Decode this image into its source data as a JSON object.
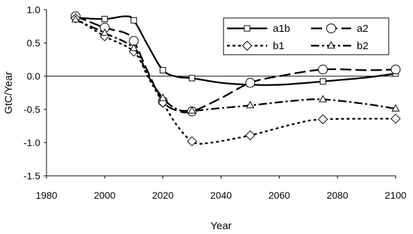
{
  "chart_data": {
    "type": "line",
    "title": "",
    "xlabel": "Year",
    "ylabel": "GtC/Year",
    "xlim": [
      1980,
      2100
    ],
    "ylim": [
      -1.5,
      1.0
    ],
    "x_ticks": [
      "1980",
      "2000",
      "2020",
      "2040",
      "2060",
      "2080",
      "2100"
    ],
    "y_ticks": [
      "1.0",
      "0.5",
      "0.0",
      "-0.5",
      "-1.0",
      "-1.5"
    ],
    "grid": false,
    "legend_position": "top-right",
    "series": [
      {
        "name": "a1b",
        "line_style": "solid",
        "marker": "square",
        "markers": [
          [
            1990,
            0.88
          ],
          [
            2000,
            0.86
          ],
          [
            2010,
            0.84
          ],
          [
            2020,
            0.09
          ],
          [
            2030,
            -0.03
          ],
          [
            2050,
            -0.12
          ],
          [
            2075,
            -0.08
          ],
          [
            2100,
            0.04
          ]
        ],
        "curve": [
          [
            1990,
            0.88
          ],
          [
            2000,
            0.86
          ],
          [
            2007,
            0.9
          ],
          [
            2010,
            0.84
          ],
          [
            2015,
            0.45
          ],
          [
            2020,
            0.09
          ],
          [
            2025,
            -0.01
          ],
          [
            2030,
            -0.03
          ],
          [
            2040,
            -0.1
          ],
          [
            2050,
            -0.13
          ],
          [
            2060,
            -0.13
          ],
          [
            2075,
            -0.08
          ],
          [
            2090,
            -0.02
          ],
          [
            2100,
            0.04
          ]
        ]
      },
      {
        "name": "a2",
        "line_style": "long-dash",
        "marker": "circle",
        "markers": [
          [
            1990,
            0.9
          ],
          [
            2000,
            0.73
          ],
          [
            2010,
            0.53
          ],
          [
            2020,
            -0.38
          ],
          [
            2030,
            -0.53
          ],
          [
            2050,
            -0.1
          ],
          [
            2075,
            0.1
          ],
          [
            2100,
            0.1
          ]
        ],
        "curve": [
          [
            1990,
            0.9
          ],
          [
            2000,
            0.73
          ],
          [
            2007,
            0.65
          ],
          [
            2010,
            0.53
          ],
          [
            2015,
            0.05
          ],
          [
            2020,
            -0.38
          ],
          [
            2025,
            -0.52
          ],
          [
            2030,
            -0.53
          ],
          [
            2040,
            -0.33
          ],
          [
            2050,
            -0.1
          ],
          [
            2060,
            0.0
          ],
          [
            2075,
            0.1
          ],
          [
            2090,
            0.09
          ],
          [
            2100,
            0.1
          ]
        ]
      },
      {
        "name": "b1",
        "line_style": "short-dash",
        "marker": "diamond",
        "markers": [
          [
            1990,
            0.87
          ],
          [
            2000,
            0.6
          ],
          [
            2010,
            0.37
          ],
          [
            2020,
            -0.4
          ],
          [
            2030,
            -0.98
          ],
          [
            2050,
            -0.89
          ],
          [
            2075,
            -0.65
          ],
          [
            2100,
            -0.64
          ]
        ],
        "curve": [
          [
            1990,
            0.87
          ],
          [
            2000,
            0.6
          ],
          [
            2010,
            0.37
          ],
          [
            2015,
            -0.02
          ],
          [
            2020,
            -0.4
          ],
          [
            2025,
            -0.75
          ],
          [
            2030,
            -0.98
          ],
          [
            2035,
            -1.01
          ],
          [
            2050,
            -0.89
          ],
          [
            2065,
            -0.72
          ],
          [
            2075,
            -0.65
          ],
          [
            2100,
            -0.64
          ]
        ]
      },
      {
        "name": "b2",
        "line_style": "dash-dot",
        "marker": "triangle",
        "markers": [
          [
            1990,
            0.85
          ],
          [
            2000,
            0.65
          ],
          [
            2010,
            0.42
          ],
          [
            2020,
            -0.33
          ],
          [
            2030,
            -0.52
          ],
          [
            2050,
            -0.44
          ],
          [
            2075,
            -0.35
          ],
          [
            2100,
            -0.49
          ]
        ],
        "curve": [
          [
            1990,
            0.85
          ],
          [
            2000,
            0.65
          ],
          [
            2010,
            0.42
          ],
          [
            2015,
            0.0
          ],
          [
            2020,
            -0.33
          ],
          [
            2025,
            -0.5
          ],
          [
            2030,
            -0.52
          ],
          [
            2040,
            -0.48
          ],
          [
            2050,
            -0.44
          ],
          [
            2065,
            -0.37
          ],
          [
            2075,
            -0.35
          ],
          [
            2090,
            -0.42
          ],
          [
            2100,
            -0.49
          ]
        ]
      }
    ]
  }
}
